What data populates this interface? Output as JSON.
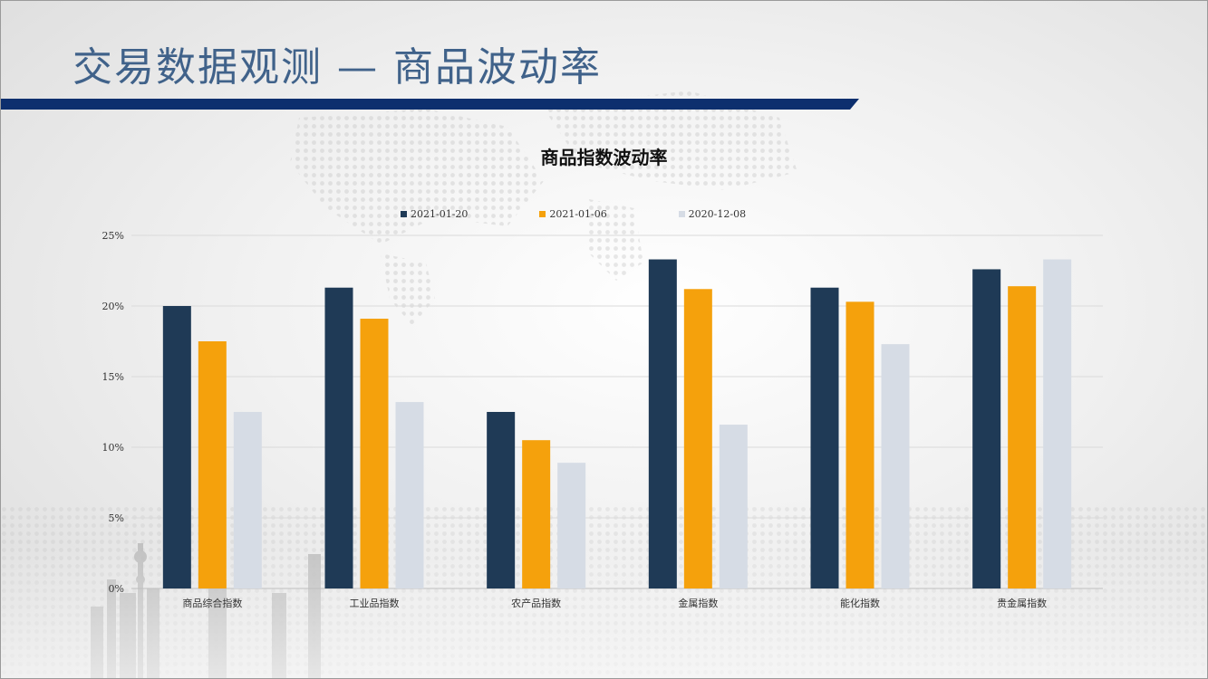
{
  "slide": {
    "title": "交易数据观测 — 商品波动率",
    "accent_color": "#0d2f6e",
    "title_color": "#40628a"
  },
  "chart_data": {
    "type": "bar",
    "title": "商品指数波动率",
    "xlabel": "",
    "ylabel": "",
    "categories": [
      "商品综合指数",
      "工业品指数",
      "农产品指数",
      "金属指数",
      "能化指数",
      "贵金属指数"
    ],
    "series": [
      {
        "name": "2021-01-20",
        "color": "#1f3a56",
        "values": [
          20.0,
          21.3,
          12.5,
          23.3,
          21.3,
          22.6
        ]
      },
      {
        "name": "2021-01-06",
        "color": "#f5a10c",
        "values": [
          17.5,
          19.1,
          10.5,
          21.2,
          20.3,
          21.4
        ]
      },
      {
        "name": "2020-12-08",
        "color": "#d6dce5",
        "values": [
          12.5,
          13.2,
          8.9,
          11.6,
          17.3,
          23.3
        ]
      }
    ],
    "ylim": [
      0,
      25
    ],
    "yticks": [
      0,
      5,
      10,
      15,
      20,
      25
    ],
    "ytick_labels": [
      "0%",
      "5%",
      "10%",
      "15%",
      "20%",
      "25%"
    ],
    "grid": true,
    "legend_position": "top"
  }
}
